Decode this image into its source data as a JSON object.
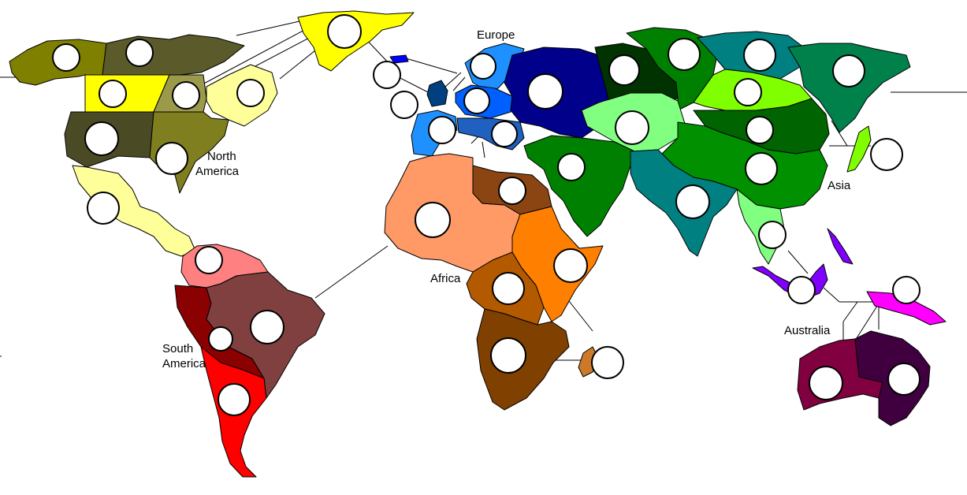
{
  "continents": {
    "north_america": {
      "line1": "North",
      "line2": "America"
    },
    "south_america": {
      "line1": "South",
      "line2": "America"
    },
    "europe": {
      "label": "Europe"
    },
    "africa": {
      "label": "Africa"
    },
    "asia": {
      "label": "Asia"
    },
    "australia": {
      "label": "Australia"
    }
  },
  "colors": {
    "background": "#ffffff",
    "slot_fill": "#ffffff",
    "slot_stroke": "#000000",
    "north_america": [
      "#808000",
      "#5a5a2a",
      "#ffff00",
      "#9a9a4a",
      "#ffff99",
      "#4a4a24",
      "#7f7f1f"
    ],
    "south_america": [
      "#ff8080",
      "#8b0000",
      "#804040",
      "#ff0000"
    ],
    "europe": [
      "#0000ff",
      "#1e90ff",
      "#00008b",
      "#004080",
      "#0060ff",
      "#2060c0"
    ],
    "africa": [
      "#ff9966",
      "#8b4513",
      "#ff8000",
      "#b35900",
      "#804000",
      "#cc7a29"
    ],
    "asia": [
      "#006400",
      "#008000",
      "#008080",
      "#00804a",
      "#80ff00",
      "#003300",
      "#80ff80",
      "#009000"
    ],
    "australia": [
      "#8000ff",
      "#ff00ff",
      "#800040",
      "#400040"
    ]
  },
  "territory_slots": {
    "north_america": [
      {
        "id": "alaska"
      },
      {
        "id": "northwest-territory"
      },
      {
        "id": "greenland"
      },
      {
        "id": "alberta"
      },
      {
        "id": "ontario"
      },
      {
        "id": "quebec"
      },
      {
        "id": "western-us"
      },
      {
        "id": "eastern-us"
      },
      {
        "id": "central-america"
      }
    ],
    "south_america": [
      {
        "id": "venezuela"
      },
      {
        "id": "peru"
      },
      {
        "id": "brazil"
      },
      {
        "id": "argentina"
      }
    ],
    "europe": [
      {
        "id": "iceland"
      },
      {
        "id": "scandinavia"
      },
      {
        "id": "great-britain"
      },
      {
        "id": "northern-europe"
      },
      {
        "id": "ukraine"
      },
      {
        "id": "western-europe"
      },
      {
        "id": "southern-europe"
      }
    ],
    "africa": [
      {
        "id": "north-africa"
      },
      {
        "id": "egypt"
      },
      {
        "id": "east-africa"
      },
      {
        "id": "congo"
      },
      {
        "id": "south-africa"
      },
      {
        "id": "madagascar"
      }
    ],
    "asia": [
      {
        "id": "ural"
      },
      {
        "id": "siberia"
      },
      {
        "id": "yakutsk"
      },
      {
        "id": "kamchatka"
      },
      {
        "id": "irkutsk"
      },
      {
        "id": "mongolia"
      },
      {
        "id": "japan"
      },
      {
        "id": "afghanistan"
      },
      {
        "id": "china"
      },
      {
        "id": "middle-east"
      },
      {
        "id": "india"
      },
      {
        "id": "siam"
      }
    ],
    "australia": [
      {
        "id": "indonesia"
      },
      {
        "id": "new-guinea"
      },
      {
        "id": "western-australia"
      },
      {
        "id": "eastern-australia"
      }
    ]
  }
}
